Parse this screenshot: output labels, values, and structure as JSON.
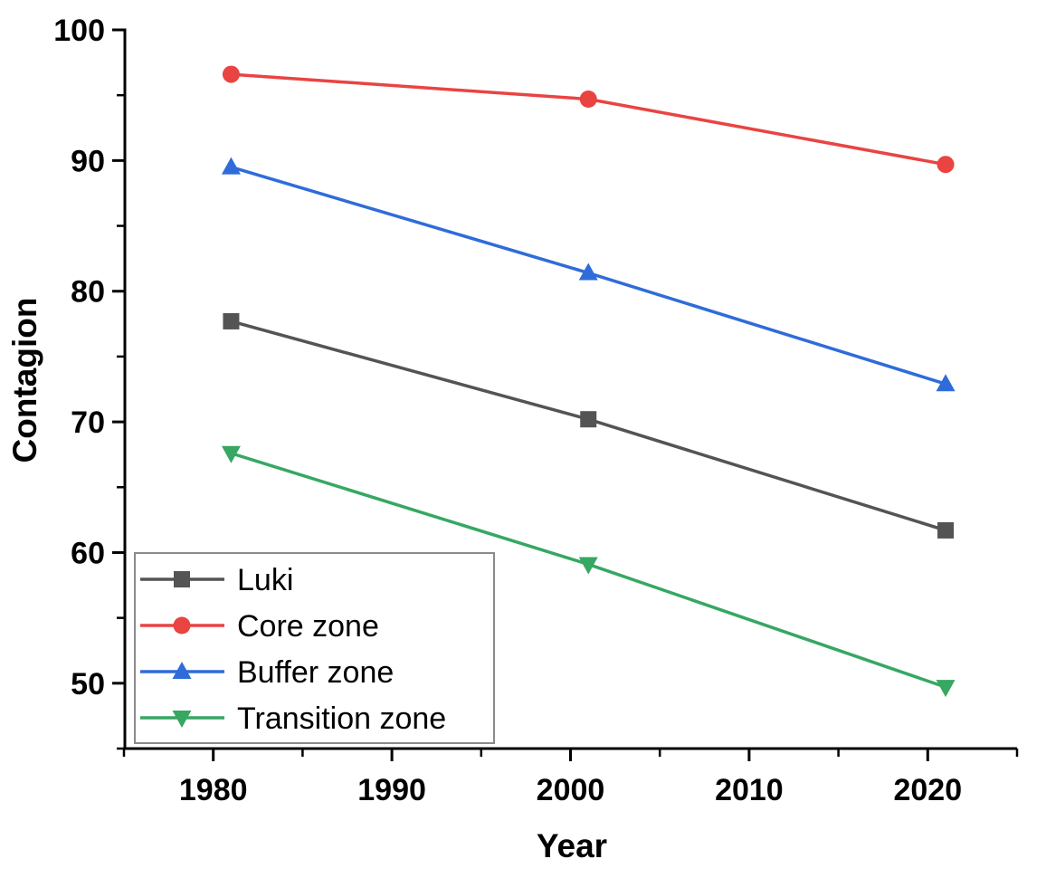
{
  "page": {
    "background_color": "#ffffff"
  },
  "chart_data": {
    "type": "line",
    "title": "",
    "xlabel": "Year",
    "ylabel": "Contagion",
    "x": [
      1981,
      2001,
      2021
    ],
    "series": [
      {
        "name": "Luki",
        "color": "#545454",
        "marker": "square",
        "values": [
          77.7,
          70.2,
          61.7
        ]
      },
      {
        "name": "Core zone",
        "color": "#E94442",
        "marker": "circle",
        "values": [
          96.6,
          94.7,
          89.7
        ]
      },
      {
        "name": "Buffer zone",
        "color": "#2F6CD9",
        "marker": "triangle-up",
        "values": [
          89.5,
          81.4,
          72.9
        ]
      },
      {
        "name": "Transition zone",
        "color": "#37A762",
        "marker": "triangle-down",
        "values": [
          67.6,
          59.1,
          49.7
        ]
      }
    ],
    "xlim": [
      1975,
      2025
    ],
    "ylim": [
      45,
      100
    ],
    "x_major_ticks": [
      1980,
      1990,
      2000,
      2010,
      2020
    ],
    "x_minor_ticks": [
      1975,
      1985,
      1995,
      2005,
      2015,
      2025
    ],
    "y_major_ticks": [
      50,
      60,
      70,
      80,
      90,
      100
    ],
    "y_minor_ticks": [
      45,
      55,
      65,
      75,
      85,
      95
    ],
    "grid": false,
    "axis_color": "#000000",
    "tick_direction": "out",
    "legend": {
      "position": "bottom-left",
      "border_color": "#8a8a8a",
      "entries": [
        "Luki",
        "Core zone",
        "Buffer zone",
        "Transition zone"
      ]
    }
  }
}
